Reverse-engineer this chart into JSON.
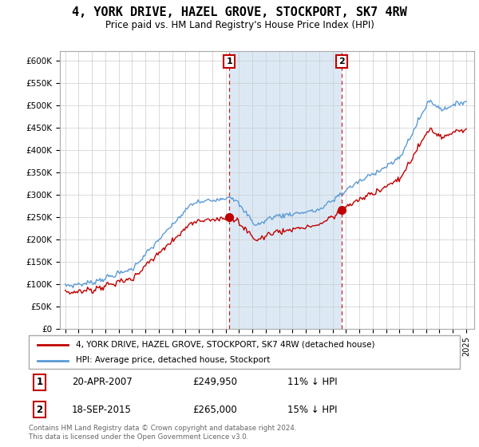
{
  "title": "4, YORK DRIVE, HAZEL GROVE, STOCKPORT, SK7 4RW",
  "subtitle": "Price paid vs. HM Land Registry's House Price Index (HPI)",
  "ylabel_ticks": [
    "£0",
    "£50K",
    "£100K",
    "£150K",
    "£200K",
    "£250K",
    "£300K",
    "£350K",
    "£400K",
    "£450K",
    "£500K",
    "£550K",
    "£600K"
  ],
  "ytick_values": [
    0,
    50000,
    100000,
    150000,
    200000,
    250000,
    300000,
    350000,
    400000,
    450000,
    500000,
    550000,
    600000
  ],
  "ylim": [
    0,
    620000
  ],
  "hpi_color": "#5b9bd5",
  "hpi_fill_color": "#dce9f5",
  "price_color": "#c00000",
  "sale1_date": "20-APR-2007",
  "sale1_price": 249950,
  "sale1_pct": "11% ↓ HPI",
  "sale1_t": 2007.29,
  "sale2_date": "18-SEP-2015",
  "sale2_price": 265000,
  "sale2_pct": "15% ↓ HPI",
  "sale2_t": 2015.71,
  "legend_property": "4, YORK DRIVE, HAZEL GROVE, STOCKPORT, SK7 4RW (detached house)",
  "legend_hpi": "HPI: Average price, detached house, Stockport",
  "footer_line1": "Contains HM Land Registry data © Crown copyright and database right 2024.",
  "footer_line2": "This data is licensed under the Open Government Licence v3.0.",
  "xlim_left": 1994.6,
  "xlim_right": 2025.6
}
